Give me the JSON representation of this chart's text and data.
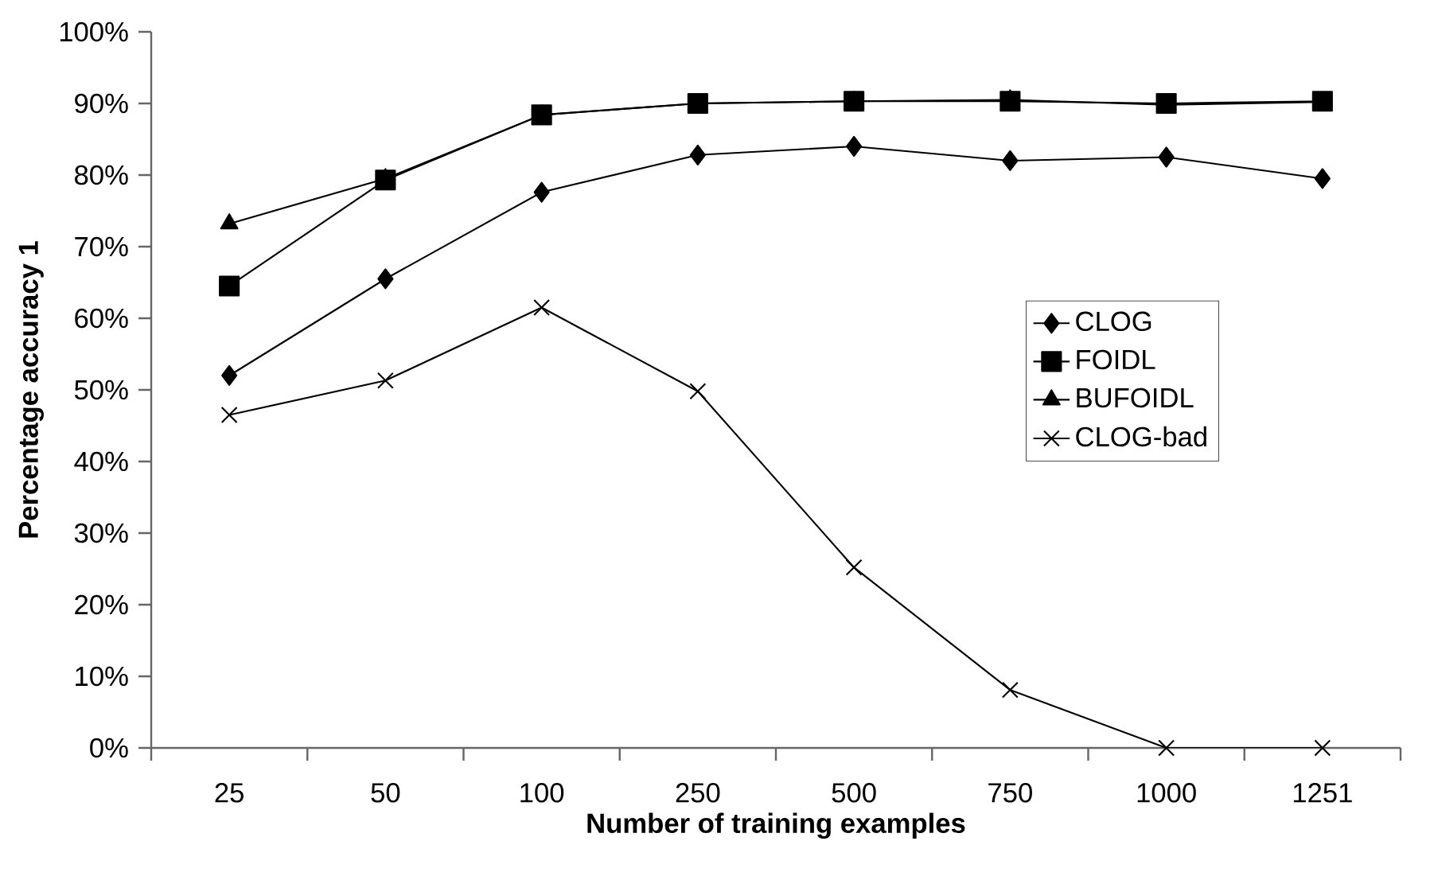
{
  "chart_data": {
    "type": "line",
    "xlabel": "Number of training examples",
    "ylabel": "Percentage accuracy   1",
    "categories": [
      "25",
      "50",
      "100",
      "250",
      "500",
      "750",
      "1000",
      "1251"
    ],
    "ylim": [
      0,
      100
    ],
    "yticks": [
      {
        "value": 0,
        "label": "0%"
      },
      {
        "value": 10,
        "label": "10%"
      },
      {
        "value": 20,
        "label": "20%"
      },
      {
        "value": 30,
        "label": "30%"
      },
      {
        "value": 40,
        "label": "40%"
      },
      {
        "value": 50,
        "label": "50%"
      },
      {
        "value": 60,
        "label": "60%"
      },
      {
        "value": 70,
        "label": "70%"
      },
      {
        "value": 80,
        "label": "80%"
      },
      {
        "value": 90,
        "label": "90%"
      },
      {
        "value": 100,
        "label": "100%"
      }
    ],
    "legend": "right",
    "grid": false,
    "series": [
      {
        "name": "CLOG",
        "color": "#000000",
        "marker": "diamond",
        "values": [
          52.0,
          65.5,
          77.6,
          82.8,
          84.0,
          82.0,
          82.5,
          79.5
        ]
      },
      {
        "name": "FOIDL",
        "color": "#000000",
        "marker": "square",
        "values": [
          64.5,
          79.3,
          88.4,
          90.0,
          90.3,
          90.3,
          90.0,
          90.3
        ]
      },
      {
        "name": "BUFOIDL",
        "color": "#000000",
        "marker": "triangle",
        "values": [
          73.2,
          79.5,
          88.4,
          90.0,
          90.3,
          90.5,
          89.8,
          90.2
        ]
      },
      {
        "name": "CLOG-bad",
        "color": "#000000",
        "marker": "cross",
        "values": [
          46.5,
          51.3,
          61.5,
          49.8,
          25.2,
          8.1,
          0,
          0
        ]
      }
    ]
  }
}
